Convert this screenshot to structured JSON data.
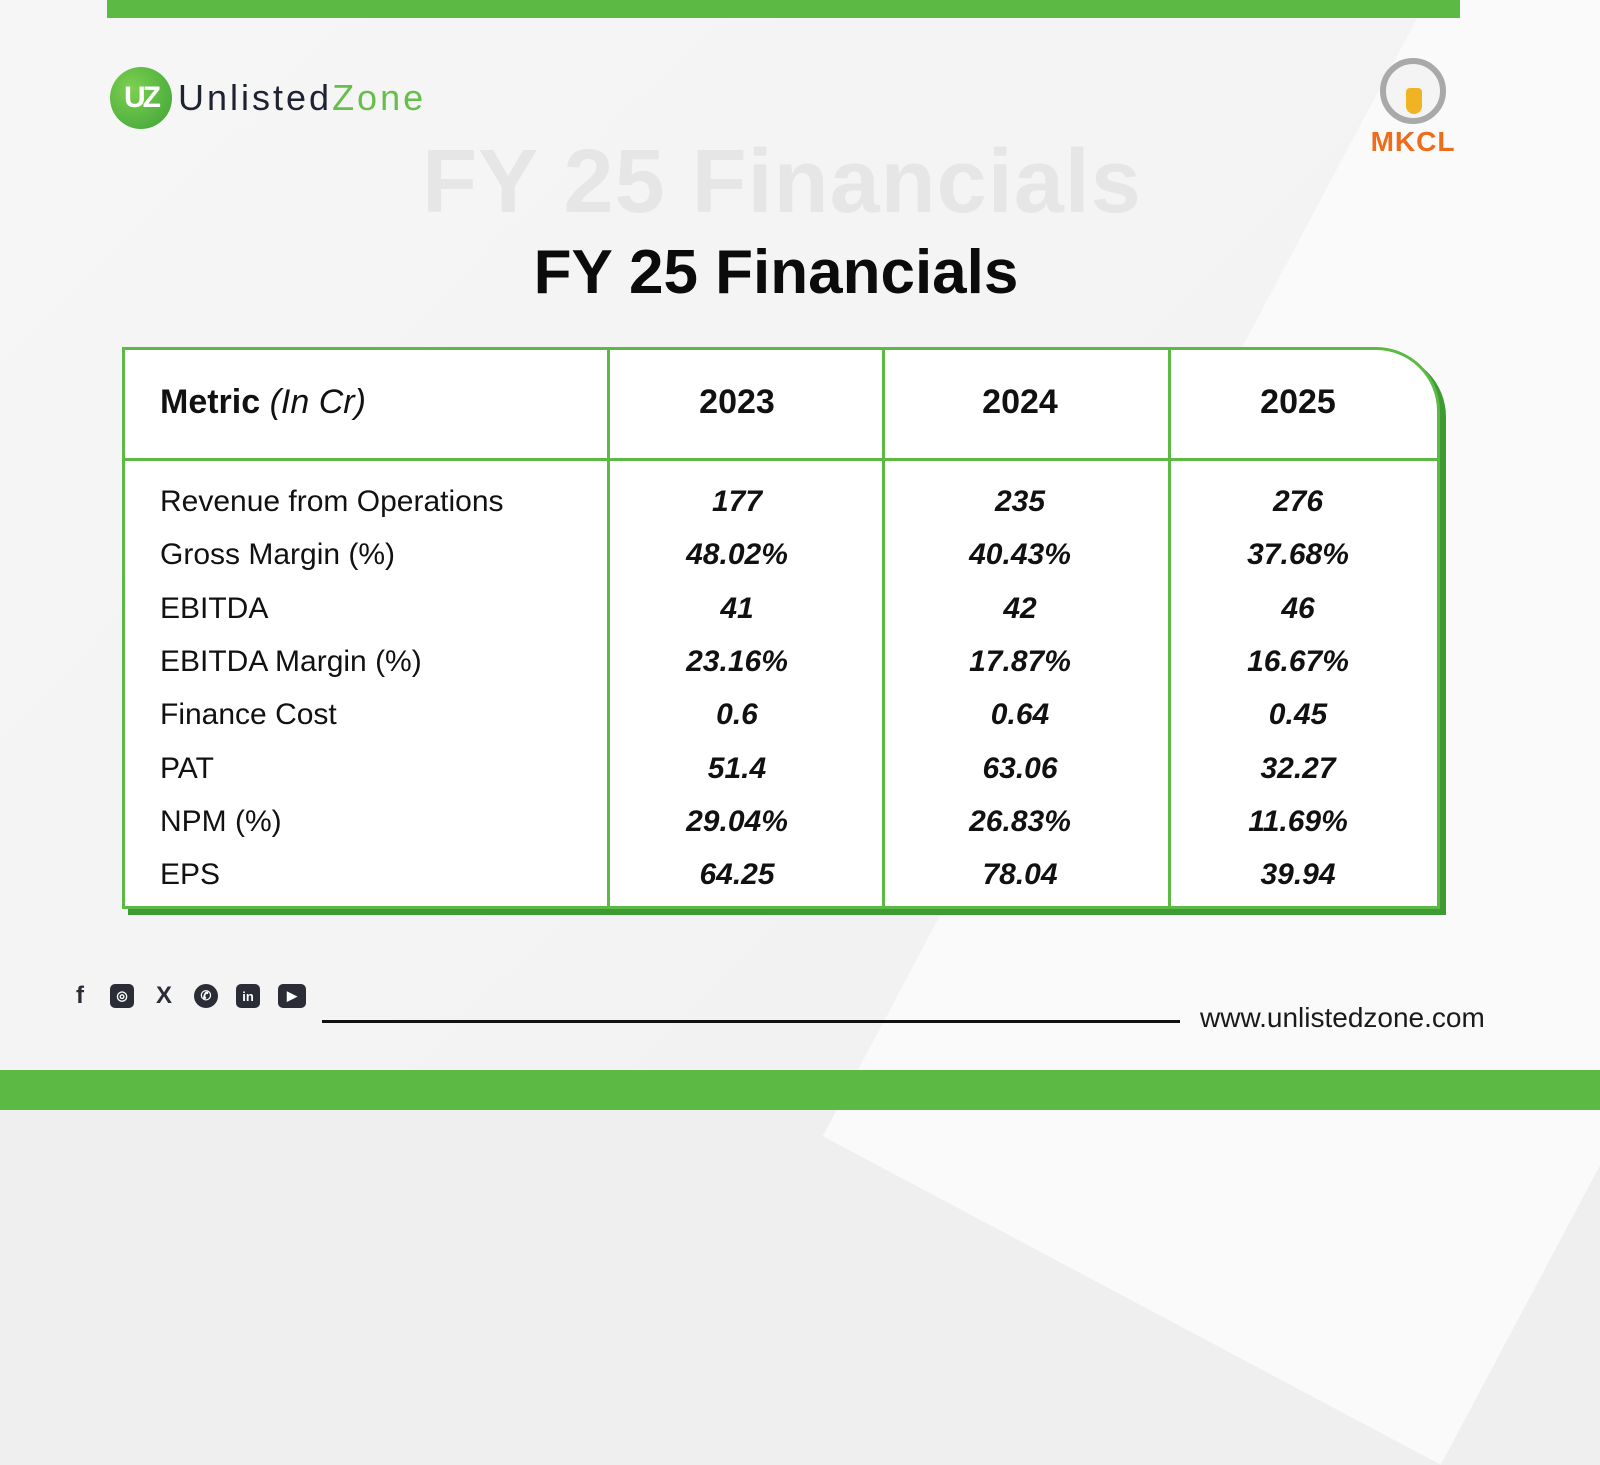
{
  "brand": {
    "logo_mark": "UZ",
    "name_part1": "Unlisted",
    "name_part2": "Zone"
  },
  "partner": {
    "name": "MKCL"
  },
  "title": "FY 25 Financials",
  "table": {
    "header": {
      "metric": "Metric",
      "unit": "(In Cr)",
      "years": [
        "2023",
        "2024",
        "2025"
      ]
    },
    "rows": [
      {
        "label": "Revenue from Operations",
        "values": [
          "177",
          "235",
          "276"
        ]
      },
      {
        "label": "Gross Margin (%)",
        "values": [
          "48.02%",
          "40.43%",
          "37.68%"
        ]
      },
      {
        "label": "EBITDA",
        "values": [
          "41",
          "42",
          "46"
        ]
      },
      {
        "label": "EBITDA Margin (%)",
        "values": [
          "23.16%",
          "17.87%",
          "16.67%"
        ]
      },
      {
        "label": "Finance Cost",
        "values": [
          "0.6",
          "0.64",
          "0.45"
        ]
      },
      {
        "label": "PAT",
        "values": [
          "51.4",
          "63.06",
          "32.27"
        ]
      },
      {
        "label": "NPM (%)",
        "values": [
          "29.04%",
          "26.83%",
          "11.69%"
        ]
      },
      {
        "label": "EPS",
        "values": [
          "64.25",
          "78.04",
          "39.94"
        ]
      }
    ]
  },
  "footer": {
    "icons": [
      "facebook-icon",
      "instagram-icon",
      "x-icon",
      "whatsapp-icon",
      "linkedin-icon",
      "youtube-icon"
    ],
    "website": "www.unlistedzone.com"
  },
  "colors": {
    "accent": "#5bb944",
    "partner": "#ef6c1a"
  }
}
